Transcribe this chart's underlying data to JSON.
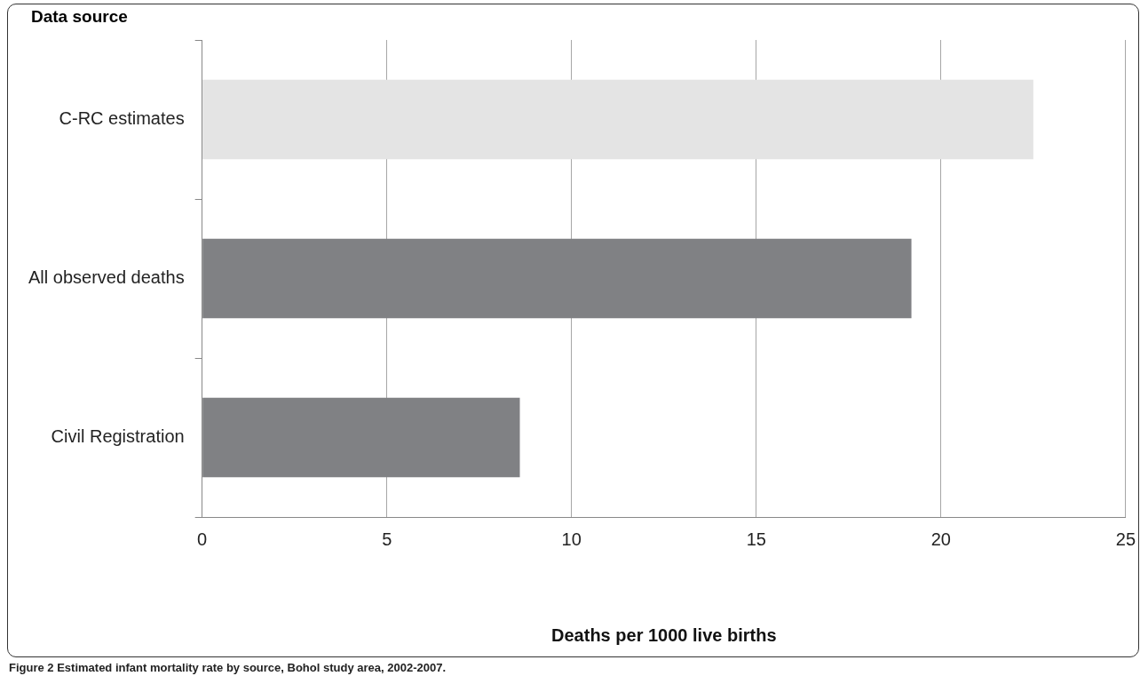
{
  "chart_data": {
    "type": "bar",
    "orientation": "horizontal",
    "ylabel": "Data source",
    "xlabel": "Deaths per 1000 live births",
    "categories": [
      "C-RC estimates",
      "All observed deaths",
      "Civil Registration"
    ],
    "values": [
      22.5,
      19.2,
      8.6
    ],
    "colors": [
      "#e4e4e4",
      "#808184",
      "#808184"
    ],
    "xlim": [
      0,
      25
    ],
    "xticks": [
      0,
      5,
      10,
      15,
      20,
      25
    ],
    "grid": "x",
    "annotations": [
      "Figure 2 Estimated infant mortality rate by source, Bohol study area, 2002-2007."
    ]
  }
}
